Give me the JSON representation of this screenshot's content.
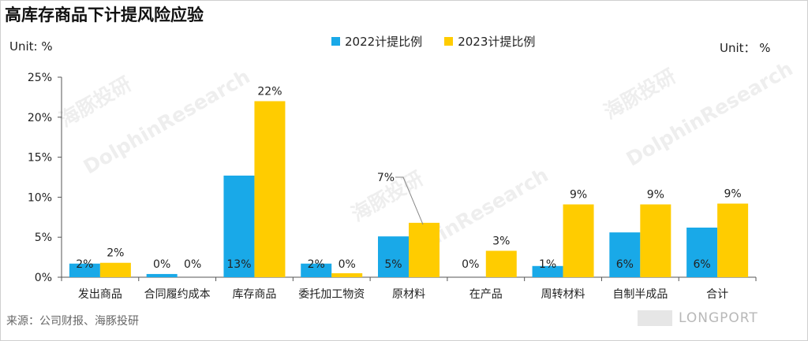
{
  "title": "高库存商品下计提风险应验",
  "unit_left": "Unit: %",
  "unit_right": "Unit： %",
  "legend": [
    {
      "label": "2022计提比例",
      "color": "#19a9e8"
    },
    {
      "label": "2023计提比例",
      "color": "#ffcc00"
    }
  ],
  "source": "来源：公司财报、海豚投研",
  "brand_text": "LONGPORT",
  "watermarks": [
    "海豚投研",
    "DolphinResearch",
    "海豚投研",
    "DolphinResearch",
    "海豚投研",
    "DolphinResearch"
  ],
  "chart_data": {
    "type": "bar",
    "categories": [
      "发出商品",
      "合同履约成本",
      "库存商品",
      "委托加工物资",
      "原材料",
      "在产品",
      "周转材料",
      "自制半成品",
      "合计"
    ],
    "series": [
      {
        "name": "2022计提比例",
        "color": "#19a9e8",
        "values": [
          1.7,
          0.4,
          12.7,
          1.7,
          5.1,
          0,
          1.4,
          5.6,
          6.2
        ],
        "labels": [
          "2%",
          "0%",
          "13%",
          "2%",
          "5%",
          "0%",
          "1%",
          "6%",
          "6%"
        ]
      },
      {
        "name": "2023计提比例",
        "color": "#ffcc00",
        "values": [
          1.8,
          0,
          22.0,
          0.5,
          6.8,
          3.3,
          9.1,
          9.1,
          9.2
        ],
        "labels": [
          "2%",
          "0%",
          "22%",
          "0%",
          "7%",
          "3%",
          "9%",
          "9%",
          "9%"
        ]
      }
    ],
    "ylim": [
      0,
      25
    ],
    "yticks": [
      0,
      5,
      10,
      15,
      20,
      25
    ],
    "ytick_labels": [
      "0%",
      "5%",
      "10%",
      "15%",
      "20%",
      "25%"
    ],
    "xlabel": "",
    "ylabel": "",
    "grid": false,
    "legend_position": "top-center"
  }
}
